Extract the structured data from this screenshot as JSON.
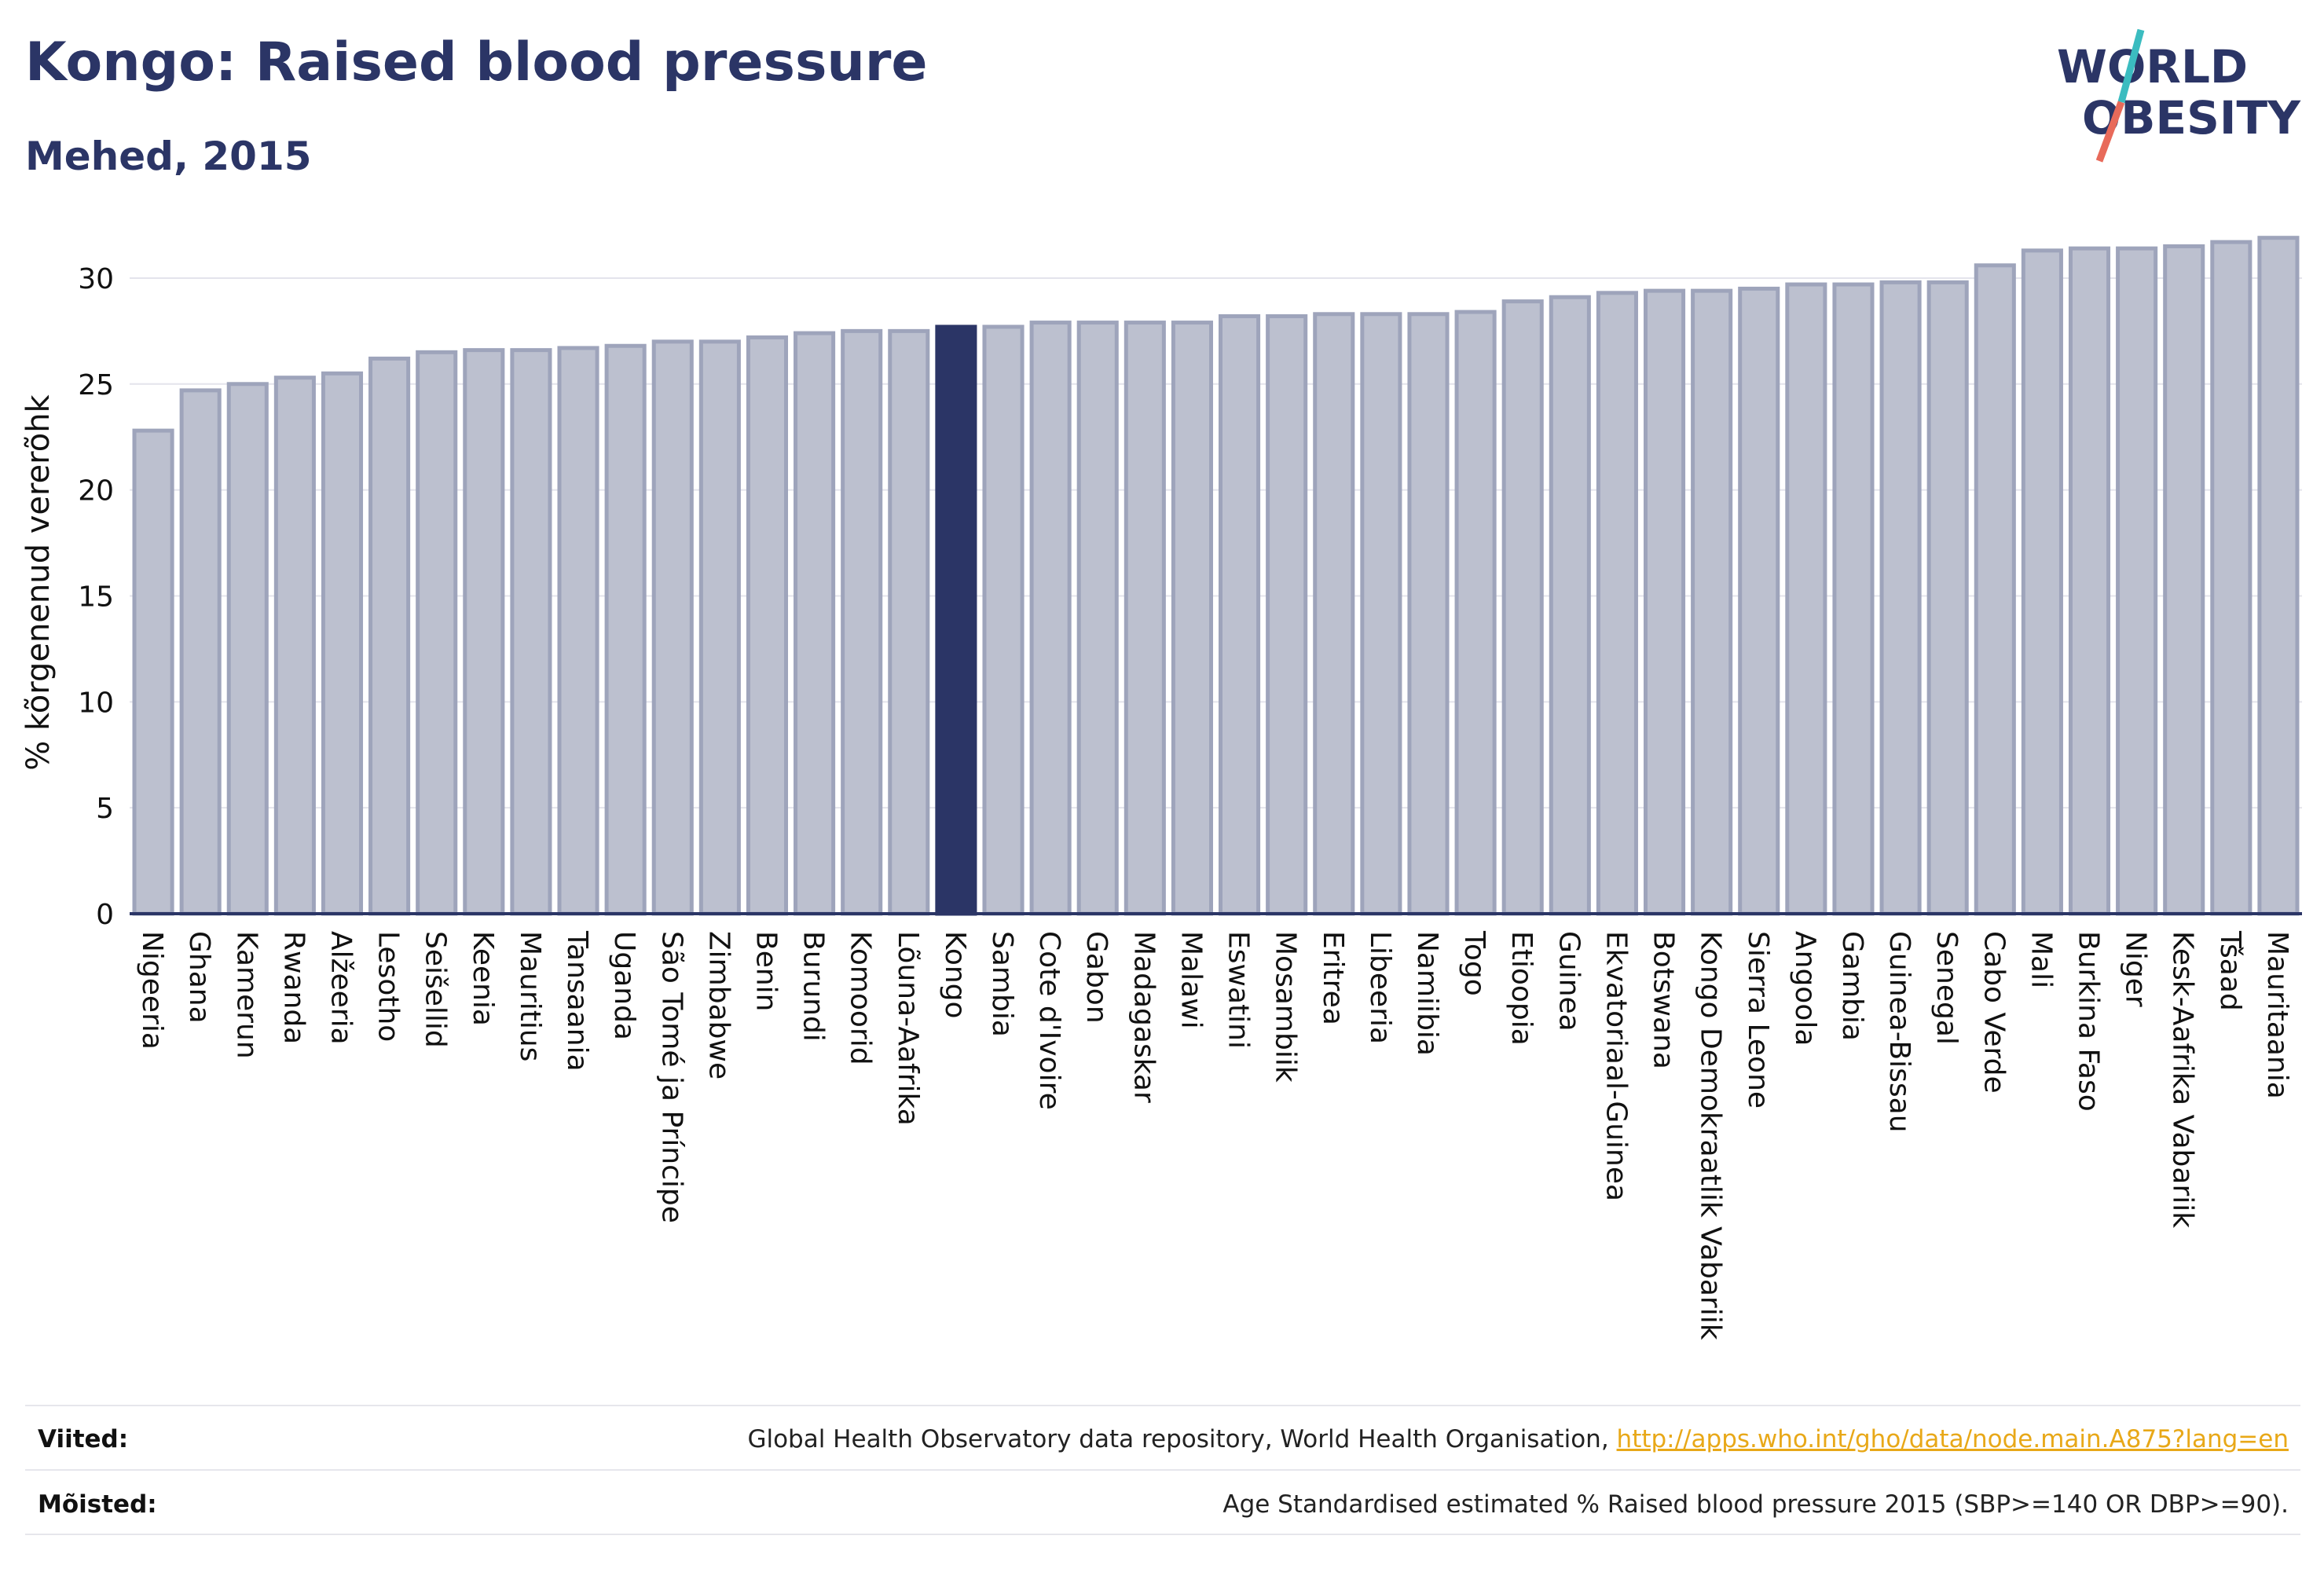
{
  "title": "Kongo: Raised blood pressure",
  "subtitle": "Mehed, 2015",
  "logo": {
    "line1": "WORLD",
    "line2": "OBESITY",
    "text_color": "#2b3566",
    "slash_color_top": "#3bbcc0",
    "slash_color_bottom": "#e86a5a"
  },
  "chart_data": {
    "type": "bar",
    "ylabel": "% kõrgenenud vererõhk",
    "ylim": [
      0,
      32
    ],
    "yticks": [
      0,
      5,
      10,
      15,
      20,
      25,
      30
    ],
    "highlight": "Kongo",
    "colors": {
      "bar": "#bcc0cf",
      "bar_edge": "#9ea4bb",
      "highlight": "#2b3566",
      "grid": "#e4e4ec",
      "axis": "#2b3566"
    },
    "categories": [
      "Nigeeria",
      "Ghana",
      "Kamerun",
      "Rwanda",
      "Alžeeria",
      "Lesotho",
      "Seišellid",
      "Keenia",
      "Mauritius",
      "Tansaania",
      "Uganda",
      "São Tomé ja Príncipe",
      "Zimbabwe",
      "Benin",
      "Burundi",
      "Komoorid",
      "Lõuna-Aafrika",
      "Kongo",
      "Sambia",
      "Cote d'Ivoire",
      "Gabon",
      "Madagaskar",
      "Malawi",
      "Eswatini",
      "Mosambiik",
      "Eritrea",
      "Libeeria",
      "Namiibia",
      "Togo",
      "Etioopia",
      "Guinea",
      "Ekvatoriaal-Guinea",
      "Botswana",
      "Kongo Demokraatlik Vabariik",
      "Sierra Leone",
      "Angoola",
      "Gambia",
      "Guinea-Bissau",
      "Senegal",
      "Cabo Verde",
      "Mali",
      "Burkina Faso",
      "Niger",
      "Kesk-Aafrika Vabariik",
      "Tšaad",
      "Mauritaania"
    ],
    "values": [
      22.8,
      24.7,
      25.0,
      25.3,
      25.5,
      26.2,
      26.5,
      26.6,
      26.6,
      26.7,
      26.8,
      27.0,
      27.0,
      27.2,
      27.4,
      27.5,
      27.5,
      27.7,
      27.7,
      27.9,
      27.9,
      27.9,
      27.9,
      28.2,
      28.2,
      28.3,
      28.3,
      28.3,
      28.4,
      28.9,
      29.1,
      29.3,
      29.4,
      29.4,
      29.5,
      29.7,
      29.7,
      29.8,
      29.8,
      30.6,
      31.3,
      31.4,
      31.4,
      31.5,
      31.7,
      31.9
    ]
  },
  "footer": {
    "refs_label": "Viited:",
    "refs_text": "Global Health Observatory data repository, World Health Organisation,",
    "refs_link": "http://apps.who.int/gho/data/node.main.A875?lang=en",
    "defs_label": "Mõisted:",
    "defs_text": "Age Standardised estimated % Raised blood pressure 2015 (SBP>=140 OR DBP>=90)."
  }
}
